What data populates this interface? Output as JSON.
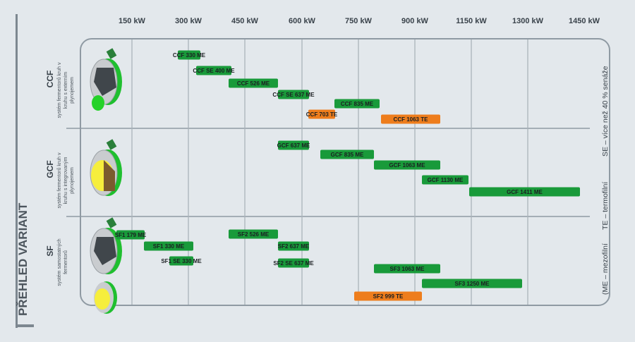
{
  "title": "PŘEHLED VARIANT",
  "axis_labels": [
    "150 kW",
    "300 kW",
    "450 kW",
    "600 kW",
    "750 kW",
    "900 kW",
    "1150 kW",
    "1300 kW",
    "1450 kW"
  ],
  "right_legend": {
    "text1": "SE – více než 40 % senáže",
    "text2": "TE – termofilní",
    "text3": "(ME – mezofilní"
  },
  "colors": {
    "green": "#199a3a",
    "orange": "#ee7d1c",
    "frame": "#8f9aa3",
    "grid": "#aab3ba",
    "text": "#39424a"
  },
  "sections": [
    {
      "name": "CCF",
      "desc": [
        "systém fermentorů kruh v",
        "kruhu s externím",
        "plynojemem"
      ],
      "bars": [
        {
          "label": "CCF 330 ME",
          "col": "green"
        },
        {
          "label": "CCF SE 400 ME",
          "col": "green"
        },
        {
          "label": "CCF 526 ME",
          "col": "green"
        },
        {
          "label": "CCF SE 637 ME",
          "col": "green"
        },
        {
          "label": "CCF 835 ME",
          "col": "green"
        },
        {
          "label": "CCF 703 TE",
          "col": "orange"
        },
        {
          "label": "CCF 1063 TE",
          "col": "orange"
        }
      ]
    },
    {
      "name": "GCF",
      "desc": [
        "systém fermentorů kruh v",
        "kruhu s integrovaným",
        "plynojemem"
      ],
      "bars": [
        {
          "label": "GCF 637 ME",
          "col": "green"
        },
        {
          "label": "GCF 835 ME",
          "col": "green"
        },
        {
          "label": "GCF 1063 ME",
          "col": "green"
        },
        {
          "label": "GCF 1130 ME",
          "col": "green"
        },
        {
          "label": "GCF 1411 ME",
          "col": "green"
        }
      ]
    },
    {
      "name": "SF",
      "desc": [
        "systém samostatných",
        "fermentorů"
      ],
      "bars": [
        {
          "label": "SF1 179 ME",
          "col": "green"
        },
        {
          "label": "SF1 330 ME",
          "col": "green"
        },
        {
          "label": "SF1 SE 330 ME",
          "col": "green"
        },
        {
          "label": "SF2 526 ME",
          "col": "green"
        },
        {
          "label": "SF2 637 ME",
          "col": "green"
        },
        {
          "label": "SF2 SE 637 ME",
          "col": "green"
        },
        {
          "label": "SF3 1063 ME",
          "col": "green"
        },
        {
          "label": "SF3 1250 ME",
          "col": "green"
        },
        {
          "label": "SF2 999 TE",
          "col": "orange"
        }
      ]
    }
  ]
}
